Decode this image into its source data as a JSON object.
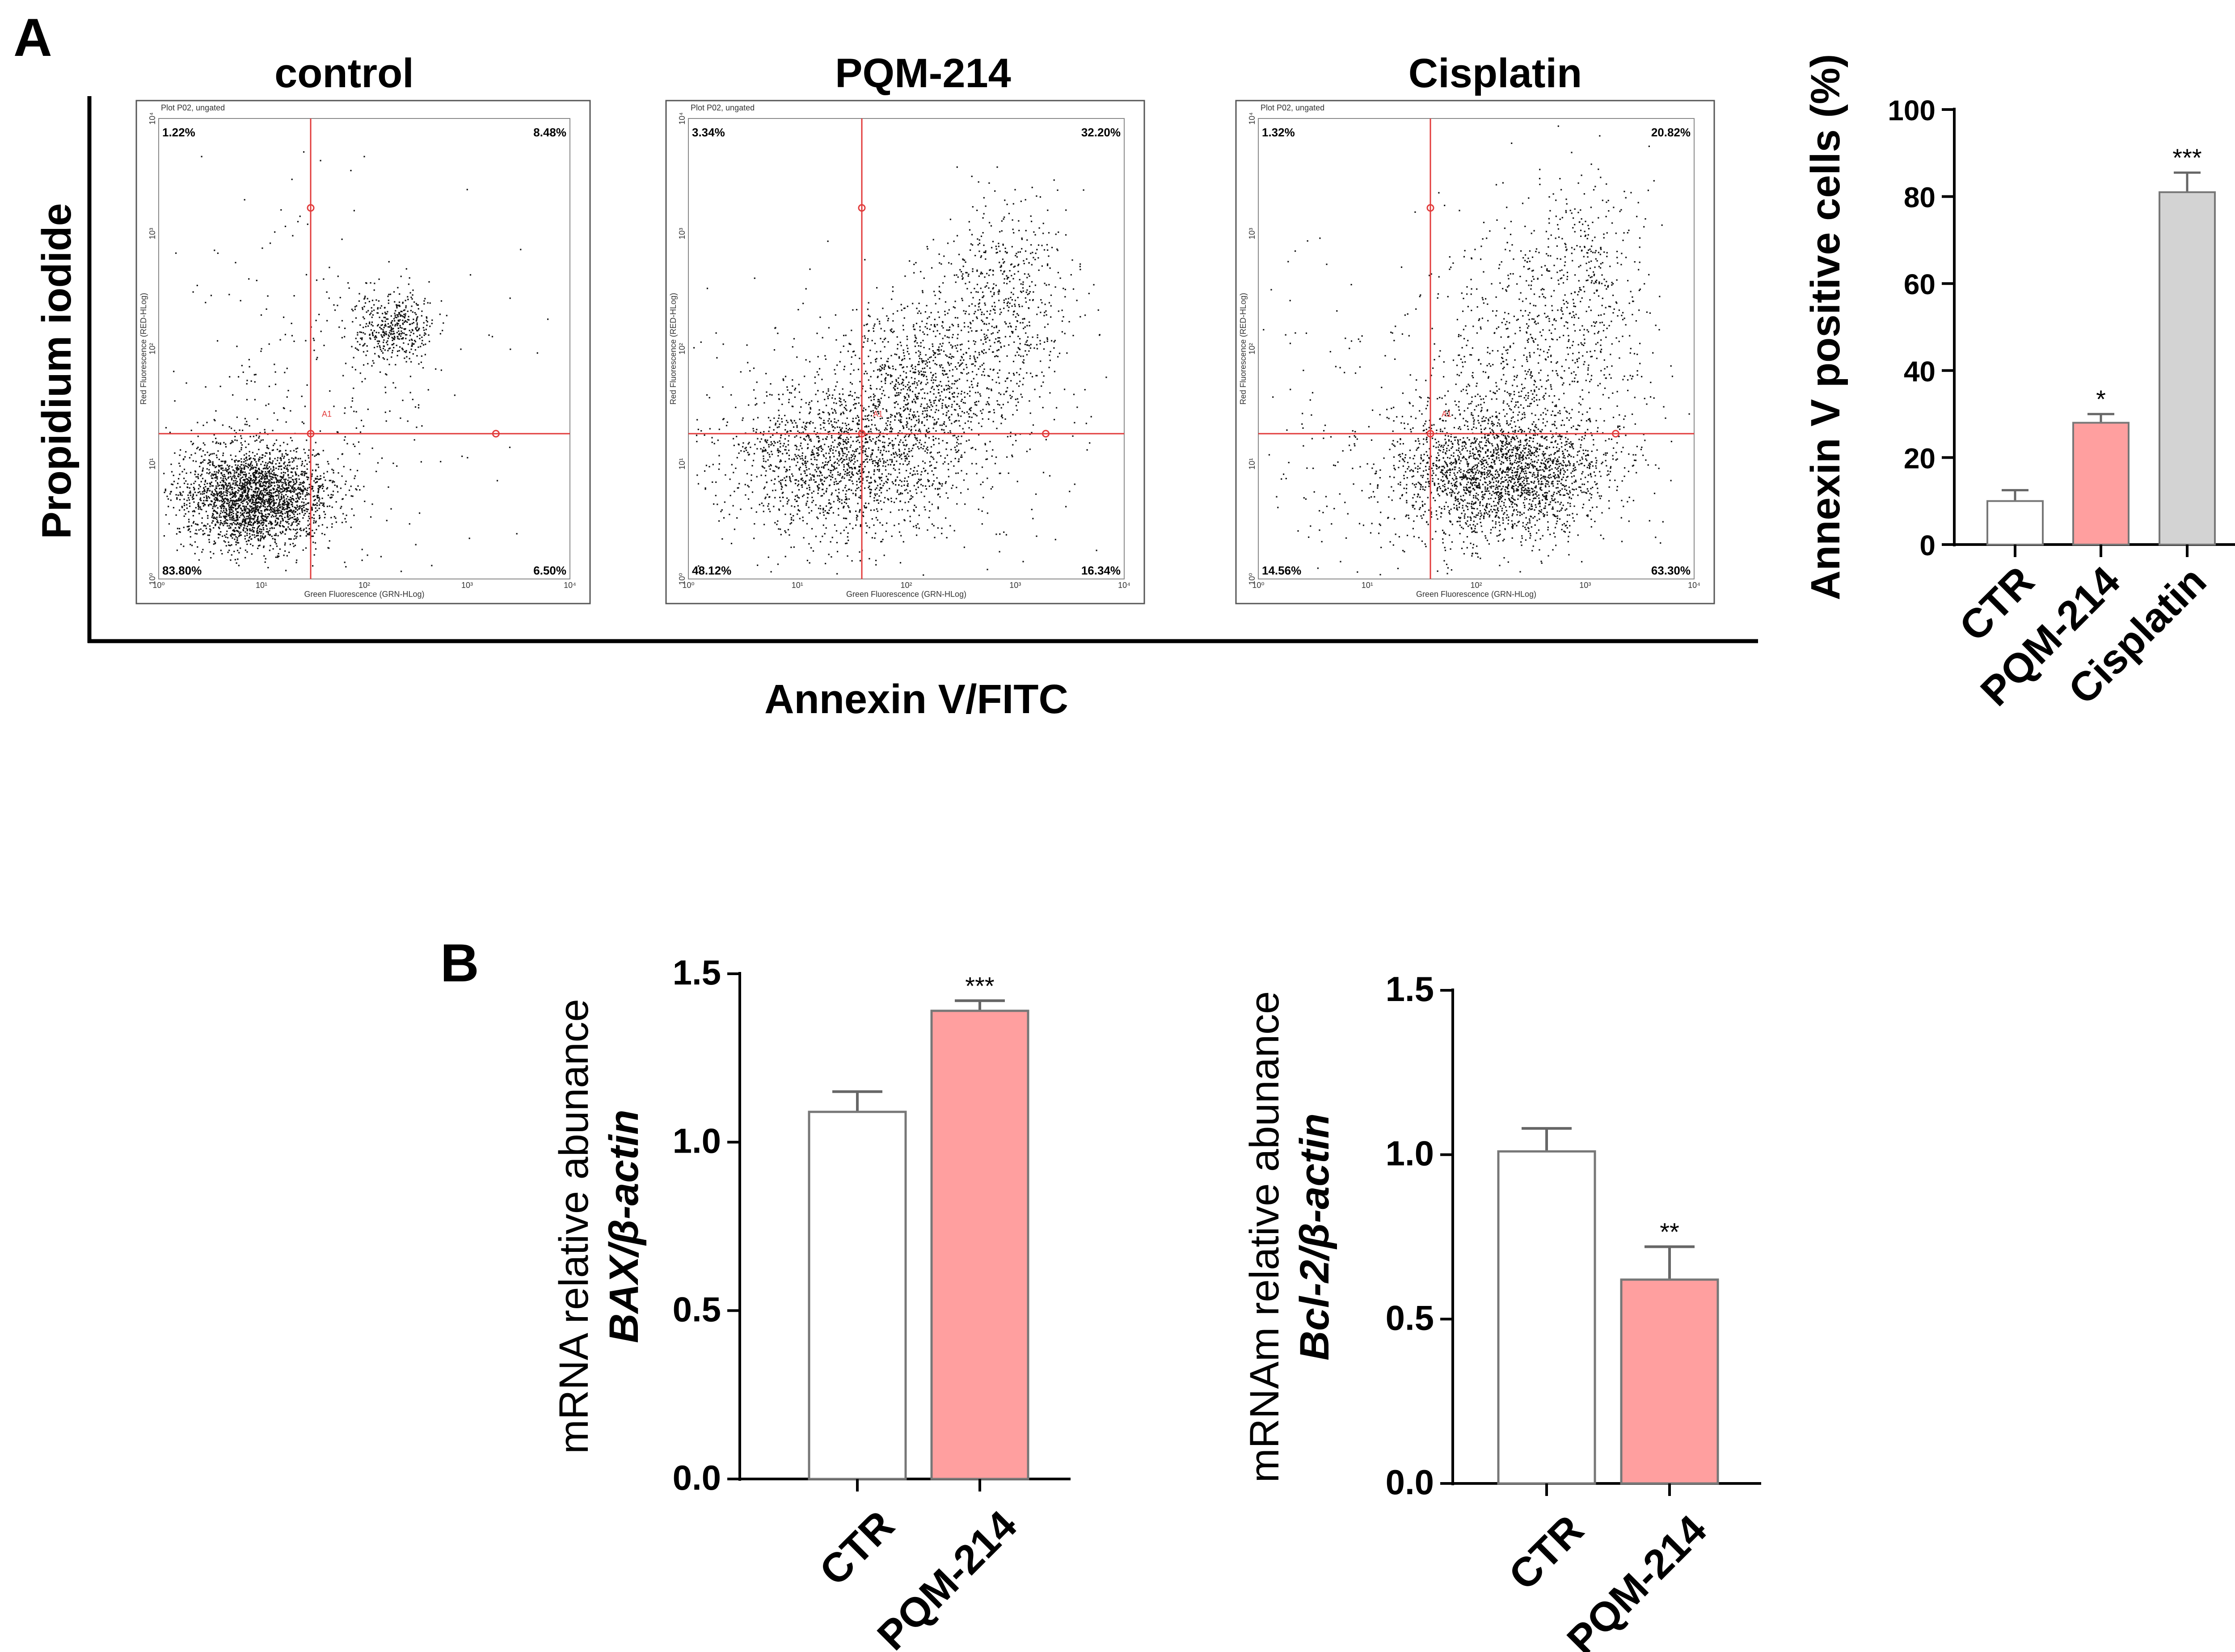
{
  "panels": {
    "a": "A",
    "b": "B"
  },
  "flow": {
    "y_label": "Propidium iodide",
    "x_label": "Annexin V/FITC",
    "plot_caption": "Plot P02, ungated",
    "axis_x_small": "Green Fluorescence (GRN-HLog)",
    "axis_y_small": "Red Fluorescence (RED-HLog)",
    "gate_label": "A1",
    "decade_ticks": [
      "10⁰",
      "10¹",
      "10²",
      "10³",
      "10⁴"
    ],
    "plots": [
      {
        "title": "control",
        "ul": "1.22%",
        "ur": "8.48%",
        "ll": "83.80%",
        "lr": "6.50%"
      },
      {
        "title": "PQM-214",
        "ul": "3.34%",
        "ur": "32.20%",
        "ll": "48.12%",
        "lr": "16.34%"
      },
      {
        "title": "Cisplatin",
        "ul": "1.32%",
        "ur": "20.82%",
        "ll": "14.56%",
        "lr": "63.30%"
      }
    ]
  },
  "colors": {
    "ctr": "#ffffff",
    "pqm": "#ff9f9f",
    "cis": "#d3d3d3",
    "gate": "#e23b3b"
  },
  "chart_data": [
    {
      "type": "bar",
      "title": "",
      "xlabel": "",
      "ylabel": "Annexin V positive cells (%)",
      "categories": [
        "CTR",
        "PQM-214",
        "Cisplatin"
      ],
      "values": [
        10,
        28,
        81
      ],
      "errors": [
        2.5,
        2,
        4.5
      ],
      "significance": [
        "",
        "*",
        "***"
      ],
      "ylim": [
        0,
        100
      ],
      "yticks": [
        "0",
        "20",
        "40",
        "60",
        "80",
        "100"
      ]
    },
    {
      "type": "bar",
      "title": "",
      "xlabel": "",
      "ylabel": "mRNA relative abunance",
      "ylabel2": "BAX/β-actin",
      "categories": [
        "CTR",
        "PQM-214"
      ],
      "values": [
        1.09,
        1.39
      ],
      "errors": [
        0.06,
        0.03
      ],
      "significance": [
        "",
        "***"
      ],
      "ylim": [
        0,
        1.5
      ],
      "yticks": [
        "0.0",
        "0.5",
        "1.0",
        "1.5"
      ]
    },
    {
      "type": "bar",
      "title": "",
      "xlabel": "",
      "ylabel": "mRNAm relative abunance",
      "ylabel2": "Bcl-2/β-actin",
      "categories": [
        "CTR",
        "PQM-214"
      ],
      "values": [
        1.01,
        0.62
      ],
      "errors": [
        0.07,
        0.1
      ],
      "significance": [
        "",
        "**"
      ],
      "ylim": [
        0,
        1.5
      ],
      "yticks": [
        "0.0",
        "0.5",
        "1.0",
        "1.5"
      ]
    }
  ]
}
